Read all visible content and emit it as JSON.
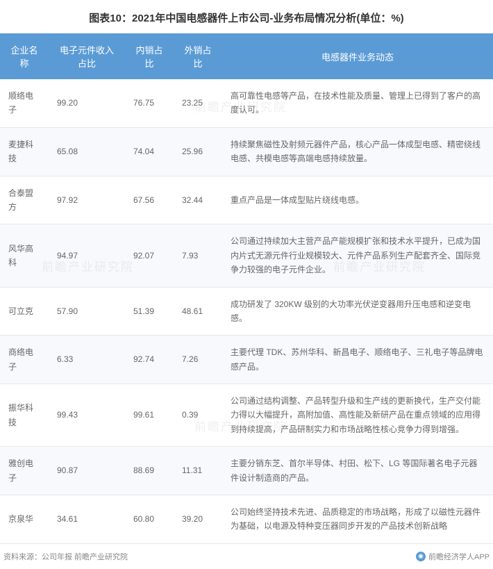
{
  "title": "图表10：2021年中国电感器件上市公司-业务布局情况分析(单位：%)",
  "columns": [
    "企业名称",
    "电子元件收入占比",
    "内销占比",
    "外销占比",
    "电感器件业务动态"
  ],
  "rows": [
    {
      "name": "顺络电子",
      "pct1": "99.20",
      "pct2": "76.75",
      "pct3": "23.25",
      "desc": "高可靠性电感等产品，在技术性能及质量、管理上已得到了客户的高度认可。"
    },
    {
      "name": "麦捷科技",
      "pct1": "65.08",
      "pct2": "74.04",
      "pct3": "25.96",
      "desc": "持续聚焦磁性及射频元器件产品，核心产品一体成型电感、精密绕线电感、共模电感等高端电感持续放量。"
    },
    {
      "name": "合泰盟方",
      "pct1": "97.92",
      "pct2": "67.56",
      "pct3": "32.44",
      "desc": "重点产品是一体成型贴片绕线电感。"
    },
    {
      "name": "风华高科",
      "pct1": "94.97",
      "pct2": "92.07",
      "pct3": "7.93",
      "desc": "公司通过持续加大主营产品产能规模扩张和技术水平提升，已成为国内片式无源元件行业规模较大、元件产品系列生产配套齐全、国际竞争力较强的电子元件企业。"
    },
    {
      "name": "可立克",
      "pct1": "57.90",
      "pct2": "51.39",
      "pct3": "48.61",
      "desc": "成功研发了 320KW 级别的大功率光伏逆变器用升压电感和逆变电感。"
    },
    {
      "name": "商络电子",
      "pct1": "6.33",
      "pct2": "92.74",
      "pct3": "7.26",
      "desc": "主要代理 TDK、苏州华科、新昌电子、顺络电子、三礼电子等品牌电感产品。"
    },
    {
      "name": "振华科技",
      "pct1": "99.43",
      "pct2": "99.61",
      "pct3": "0.39",
      "desc": "公司通过结构调整、产品转型升级和生产线的更新换代，生产交付能力得以大幅提升，高附加值、高性能及新研产品在重点领域的应用得到持续提高，产品研制实力和市场战略性核心竞争力得到增强。"
    },
    {
      "name": "雅创电子",
      "pct1": "90.87",
      "pct2": "88.69",
      "pct3": "11.31",
      "desc": "主要分销东芝、首尔半导体、村田、松下、LG 等国际著名电子元器件设计制造商的产品。"
    },
    {
      "name": "京泉华",
      "pct1": "34.61",
      "pct2": "60.80",
      "pct3": "39.20",
      "desc": "公司始终坚持技术先进、品质稳定的市场战略，形成了以磁性元器件为基础，以电源及特种变压器同步开发的产品技术创新战略"
    }
  ],
  "footer_left": "资料来源：公司年报 前瞻产业研究院",
  "footer_right": "前瞻经济学人APP",
  "watermark_text": "前瞻产业研究院",
  "colors": {
    "header_bg": "#5b9bd5",
    "header_text": "#ffffff",
    "row_even_bg": "#f7f9fc",
    "row_odd_bg": "#ffffff",
    "border": "#e8e8e8",
    "text": "#666666",
    "title_text": "#333333",
    "footer_text": "#888888"
  }
}
